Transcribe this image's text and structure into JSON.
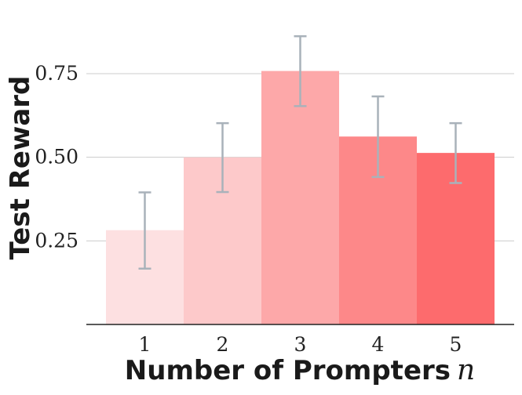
{
  "chart_data": {
    "type": "bar",
    "xlabel": "Number of Prompters",
    "xlabel_var": "n",
    "ylabel": "Test Reward",
    "categories": [
      "1",
      "2",
      "3",
      "4",
      "5"
    ],
    "values": [
      0.282,
      0.5,
      0.758,
      0.562,
      0.513
    ],
    "error_low": [
      0.167,
      0.396,
      0.653,
      0.441,
      0.423
    ],
    "error_high": [
      0.395,
      0.602,
      0.862,
      0.682,
      0.602
    ],
    "ylim": [
      0,
      0.9
    ],
    "yticks": [
      0.25,
      0.5,
      0.75
    ],
    "ytick_labels": [
      "0.25",
      "0.50",
      "0.75"
    ],
    "grid": true,
    "colors": [
      "#fde0e1",
      "#fdc9ca",
      "#fda8a9",
      "#fd8889",
      "#fd6b6d"
    ],
    "error_bar_color": "#a9b2ba",
    "grid_color": "#cccccc"
  }
}
